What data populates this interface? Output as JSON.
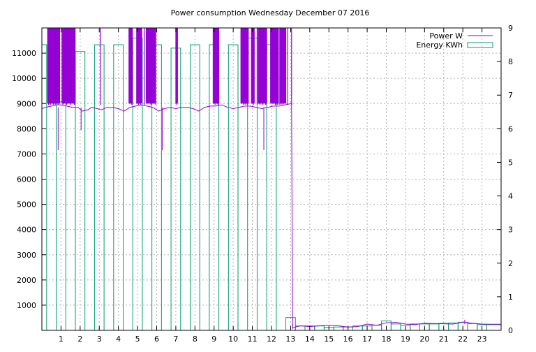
{
  "chart_data": {
    "type": "bar",
    "title": "Power consumption Wednesday December 07 2016",
    "x_ticks": [
      "1",
      "2",
      "3",
      "4",
      "5",
      "6",
      "7",
      "8",
      "9",
      "10",
      "11",
      "12",
      "13",
      "14",
      "15",
      "16",
      "17",
      "18",
      "19",
      "20",
      "21",
      "22",
      "23"
    ],
    "xlim": [
      0,
      24
    ],
    "y_ticks": [
      "1000",
      "2000",
      "3000",
      "4000",
      "5000",
      "6000",
      "7000",
      "8000",
      "9000",
      "10000",
      "11000"
    ],
    "ylim": [
      0,
      12000
    ],
    "y2_ticks": [
      "0",
      "1",
      "2",
      "3",
      "4",
      "5",
      "6",
      "7",
      "8",
      "9"
    ],
    "y2lim": [
      0,
      9
    ],
    "grid": true,
    "legend_position": "top-right",
    "legend": [
      {
        "name": "Power W",
        "color": "#9400d3"
      },
      {
        "name": "Energy KWh",
        "color": "#009e73"
      }
    ],
    "series": [
      {
        "name": "Energy KWh",
        "axis": "y2",
        "kind": "bar",
        "color": "#009e73",
        "bars": [
          [
            0.0,
            0.25,
            8.5
          ],
          [
            0.25,
            0.75,
            0
          ],
          [
            0.75,
            1.25,
            6.8
          ],
          [
            1.25,
            1.75,
            0
          ],
          [
            1.75,
            2.25,
            8.3
          ],
          [
            2.25,
            2.75,
            0
          ],
          [
            2.75,
            3.25,
            8.5
          ],
          [
            3.25,
            3.75,
            0
          ],
          [
            3.75,
            4.25,
            8.5
          ],
          [
            4.25,
            4.75,
            0
          ],
          [
            4.75,
            5.25,
            8.7
          ],
          [
            5.25,
            5.75,
            0
          ],
          [
            5.75,
            6.25,
            8.5
          ],
          [
            6.25,
            6.75,
            0
          ],
          [
            6.75,
            7.25,
            8.4
          ],
          [
            7.25,
            7.75,
            0
          ],
          [
            7.75,
            8.25,
            8.5
          ],
          [
            8.25,
            8.75,
            0
          ],
          [
            8.75,
            9.25,
            8.5
          ],
          [
            9.25,
            9.75,
            0
          ],
          [
            9.75,
            10.25,
            8.5
          ],
          [
            10.25,
            10.75,
            0
          ],
          [
            10.75,
            11.25,
            8.7
          ],
          [
            11.25,
            11.75,
            0
          ],
          [
            11.75,
            12.25,
            8.5
          ],
          [
            12.25,
            12.75,
            0
          ],
          [
            12.75,
            13.25,
            0.38
          ],
          [
            13.25,
            13.75,
            0.13
          ],
          [
            13.75,
            14.25,
            0.13
          ],
          [
            14.25,
            14.75,
            0.13
          ],
          [
            14.75,
            15.25,
            0.09
          ],
          [
            15.25,
            15.75,
            0.1
          ],
          [
            15.75,
            16.25,
            0.1
          ],
          [
            16.25,
            16.75,
            0.13
          ],
          [
            16.75,
            17.25,
            0.13
          ],
          [
            17.25,
            17.75,
            0.15
          ],
          [
            17.75,
            18.25,
            0.28
          ],
          [
            18.25,
            18.75,
            0.19
          ],
          [
            18.75,
            19.25,
            0.15
          ],
          [
            19.25,
            19.75,
            0.19
          ],
          [
            19.75,
            20.25,
            0.19
          ],
          [
            20.25,
            20.75,
            0.19
          ],
          [
            20.75,
            21.25,
            0.21
          ],
          [
            21.25,
            21.75,
            0.22
          ],
          [
            21.75,
            22.25,
            0.24
          ],
          [
            22.25,
            22.75,
            0.2
          ],
          [
            22.75,
            23.25,
            0.17
          ],
          [
            23.25,
            24.0,
            0.17
          ]
        ]
      },
      {
        "name": "Power W",
        "axis": "y",
        "kind": "line",
        "color": "#9400d3",
        "baseline": [
          [
            0.0,
            8800
          ],
          [
            0.2,
            8850
          ],
          [
            0.5,
            8900
          ],
          [
            0.8,
            8950
          ],
          [
            1.0,
            8950
          ],
          [
            1.3,
            8900
          ],
          [
            1.6,
            8850
          ],
          [
            1.9,
            8850
          ],
          [
            2.1,
            8700
          ],
          [
            2.4,
            8750
          ],
          [
            2.6,
            8850
          ],
          [
            2.9,
            8800
          ],
          [
            3.1,
            8750
          ],
          [
            3.4,
            8850
          ],
          [
            3.7,
            8850
          ],
          [
            4.0,
            8800
          ],
          [
            4.3,
            8700
          ],
          [
            4.6,
            8850
          ],
          [
            4.9,
            8900
          ],
          [
            5.2,
            8950
          ],
          [
            5.5,
            8900
          ],
          [
            5.8,
            8850
          ],
          [
            6.1,
            8700
          ],
          [
            6.4,
            8800
          ],
          [
            6.7,
            8850
          ],
          [
            7.0,
            8800
          ],
          [
            7.3,
            8850
          ],
          [
            7.6,
            8850
          ],
          [
            7.9,
            8800
          ],
          [
            8.2,
            8700
          ],
          [
            8.5,
            8850
          ],
          [
            8.8,
            8900
          ],
          [
            9.1,
            8900
          ],
          [
            9.4,
            8950
          ],
          [
            9.7,
            8850
          ],
          [
            10.0,
            8800
          ],
          [
            10.3,
            8850
          ],
          [
            10.6,
            8900
          ],
          [
            10.9,
            8900
          ],
          [
            11.2,
            8850
          ],
          [
            11.5,
            8800
          ],
          [
            11.8,
            8850
          ],
          [
            12.1,
            8900
          ],
          [
            12.4,
            8900
          ],
          [
            12.7,
            8950
          ],
          [
            13.05,
            9000
          ],
          [
            13.1,
            100
          ],
          [
            13.5,
            180
          ],
          [
            14.0,
            150
          ],
          [
            14.5,
            180
          ],
          [
            15.0,
            200
          ],
          [
            15.5,
            180
          ],
          [
            15.8,
            150
          ],
          [
            16.0,
            130
          ],
          [
            16.5,
            150
          ],
          [
            17.0,
            250
          ],
          [
            17.5,
            200
          ],
          [
            18.0,
            300
          ],
          [
            18.5,
            320
          ],
          [
            19.0,
            250
          ],
          [
            19.5,
            230
          ],
          [
            20.0,
            280
          ],
          [
            20.5,
            270
          ],
          [
            21.0,
            260
          ],
          [
            21.5,
            250
          ],
          [
            22.0,
            330
          ],
          [
            22.5,
            280
          ],
          [
            23.0,
            250
          ],
          [
            23.5,
            240
          ],
          [
            24.0,
            240
          ]
        ],
        "spikes": [
          [
            0.35,
            12000
          ],
          [
            0.45,
            12000
          ],
          [
            0.6,
            12000
          ],
          [
            0.7,
            12000
          ],
          [
            0.85,
            12000
          ],
          [
            1.1,
            12000
          ],
          [
            1.3,
            12000
          ],
          [
            1.5,
            12000
          ],
          [
            1.7,
            12000
          ],
          [
            3.05,
            12000
          ],
          [
            4.7,
            12000
          ],
          [
            5.05,
            12000
          ],
          [
            5.15,
            12000
          ],
          [
            5.35,
            12000
          ],
          [
            5.7,
            12000
          ],
          [
            5.95,
            12000
          ],
          [
            7.05,
            12000
          ],
          [
            9.05,
            12000
          ],
          [
            9.2,
            12000
          ],
          [
            10.55,
            12000
          ],
          [
            10.65,
            12000
          ],
          [
            10.75,
            12000
          ],
          [
            11.05,
            12000
          ],
          [
            11.25,
            12000
          ],
          [
            11.4,
            12000
          ],
          [
            11.55,
            12000
          ],
          [
            11.7,
            12000
          ],
          [
            12.2,
            12000
          ],
          [
            12.3,
            12000
          ],
          [
            12.4,
            12000
          ],
          [
            12.5,
            12000
          ],
          [
            12.6,
            12000
          ],
          [
            12.85,
            12000
          ],
          [
            13.05,
            12000
          ]
        ],
        "dips": [
          [
            0.85,
            7150
          ],
          [
            2.05,
            7950
          ],
          [
            6.3,
            7150
          ],
          [
            11.6,
            7150
          ],
          [
            13.1,
            50
          ],
          [
            22.1,
            420
          ]
        ],
        "dense_bands": [
          [
            0.3,
            0.95
          ],
          [
            1.05,
            1.75
          ],
          [
            4.55,
            4.75
          ],
          [
            4.95,
            5.25
          ],
          [
            5.45,
            5.95
          ],
          [
            7.0,
            7.1
          ],
          [
            8.95,
            9.25
          ],
          [
            10.4,
            10.8
          ],
          [
            10.95,
            11.1
          ],
          [
            11.3,
            11.75
          ],
          [
            11.95,
            12.35
          ],
          [
            12.45,
            12.75
          ]
        ]
      }
    ]
  }
}
